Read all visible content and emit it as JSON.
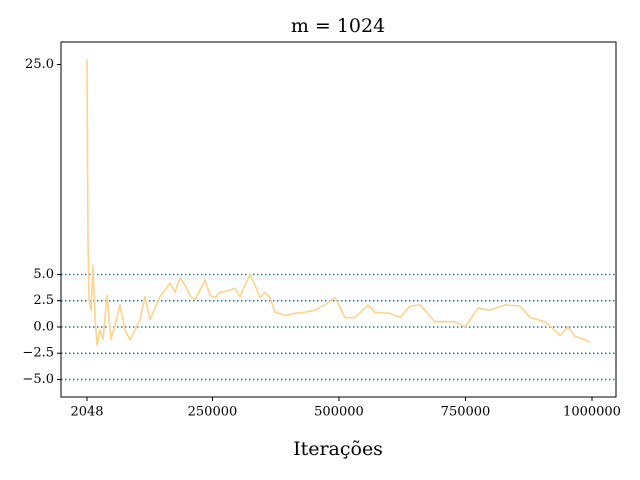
{
  "chart_data": {
    "type": "line",
    "title": "m = 1024",
    "x_label": "Iterações",
    "series": [
      {
        "name": "m = 1024",
        "color": "#fdd48a",
        "x": [
          2048,
          4024,
          6000,
          9953,
          13900,
          17860,
          21800,
          27740,
          33670,
          41580,
          49480,
          57400,
          67270,
          77150,
          87030,
          96910,
          106800,
          116600,
          126500,
          136400,
          146300,
          156200,
          166100,
          176000,
          185800,
          195700,
          205600,
          215500,
          225400,
          235300,
          245100,
          255000,
          264900,
          284700,
          294500,
          304400,
          314300,
          324200,
          334100,
          343900,
          353800,
          363700,
          373600,
          393400,
          413100,
          432900,
          452600,
          472400,
          492200,
          511900,
          531700,
          557400,
          571200,
          600900,
          620600,
          640400,
          660200,
          689800,
          729300,
          749100,
          774800,
          798500,
          828200,
          857800,
          877600,
          907300,
          936900,
          952700,
          966500,
          986300,
          996200
        ],
        "values": [
          25.5,
          8.3,
          2.6,
          1.6,
          5.9,
          0.9,
          -1.7,
          -0.3,
          -1.2,
          3.0,
          -1.2,
          0.2,
          2.1,
          -0.3,
          -1.2,
          -0.3,
          0.7,
          2.9,
          0.7,
          1.8,
          2.9,
          3.5,
          4.2,
          3.3,
          4.7,
          4.0,
          3.0,
          2.6,
          3.5,
          4.5,
          3.0,
          2.8,
          3.3,
          3.5,
          3.7,
          2.9,
          4.0,
          5.0,
          4.0,
          2.8,
          3.3,
          2.8,
          1.4,
          1.1,
          1.3,
          1.4,
          1.6,
          2.1,
          2.8,
          0.9,
          0.9,
          2.1,
          1.4,
          1.3,
          0.9,
          2.0,
          2.1,
          0.5,
          0.5,
          0.0,
          1.8,
          1.6,
          2.1,
          2.0,
          0.9,
          0.5,
          -0.8,
          0.0,
          -0.9,
          -1.2,
          -1.5
        ]
      }
    ],
    "hlines": [
      5,
      2.5,
      0,
      -2.5,
      -5
    ],
    "hline_color": "#1f77b4",
    "xlim": [
      -49300,
      1047400
    ],
    "ylim": [
      -6.67,
      27.14
    ],
    "xticks": [
      2048,
      250000,
      500000,
      750000,
      1000000
    ],
    "yticks": [
      {
        "value": -5,
        "label": "−5.0"
      },
      {
        "value": -2.5,
        "label": "−2.5"
      },
      {
        "value": 0,
        "label": "0.0"
      },
      {
        "value": 2.5,
        "label": "2.5"
      },
      {
        "value": 5,
        "label": "5.0"
      },
      {
        "value": 25,
        "label": "25.0"
      }
    ]
  }
}
